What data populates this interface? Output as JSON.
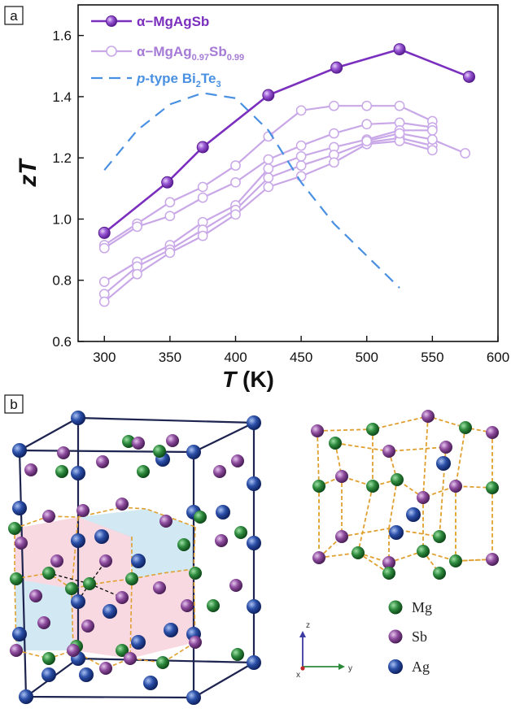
{
  "panels": {
    "a": "a",
    "b": "b"
  },
  "chart_data": {
    "type": "line",
    "xlabel_italic": "T",
    "xlabel_unit": " (K)",
    "ylabel_z": "z",
    "ylabel_T": "T",
    "xlim": [
      280,
      600
    ],
    "ylim": [
      0.6,
      1.7
    ],
    "xticks": [
      300,
      350,
      400,
      450,
      500,
      550,
      600
    ],
    "yticks": [
      0.6,
      0.8,
      1.0,
      1.2,
      1.4,
      1.6
    ],
    "legend": {
      "main": "α−MgAgSb",
      "doped_prefix": "α−MgAg",
      "doped_sub1": "0.97",
      "doped_mid": "Sb",
      "doped_sub2": "0.99",
      "bi_italic": "p",
      "bi_mid": "-type Bi",
      "bi_sub1": "2",
      "bi_te": "Te",
      "bi_sub2": "3"
    },
    "colors": {
      "main": "#7B2FBE",
      "doped": "#C9A8E8",
      "bi": "#4A90E2"
    },
    "main_series": {
      "name": "α−MgAgSb",
      "x": [
        300,
        348,
        375,
        425,
        477,
        525,
        578
      ],
      "y": [
        0.955,
        1.12,
        1.235,
        1.405,
        1.495,
        1.555,
        1.465
      ]
    },
    "doped_series": [
      {
        "x": [
          300,
          325,
          350,
          375,
          400,
          425,
          450,
          475,
          500,
          525,
          550
        ],
        "y": [
          0.915,
          0.985,
          1.055,
          1.105,
          1.175,
          1.27,
          1.355,
          1.37,
          1.37,
          1.37,
          1.32
        ]
      },
      {
        "x": [
          300,
          325,
          350,
          375,
          400,
          425,
          450,
          475,
          500,
          525,
          550
        ],
        "y": [
          0.905,
          0.975,
          1.01,
          1.07,
          1.12,
          1.195,
          1.24,
          1.28,
          1.31,
          1.315,
          1.3
        ]
      },
      {
        "x": [
          300,
          325,
          350,
          375,
          400,
          425,
          450,
          475,
          500,
          525,
          550
        ],
        "y": [
          0.795,
          0.86,
          0.915,
          0.99,
          1.045,
          1.165,
          1.205,
          1.235,
          1.26,
          1.29,
          1.29
        ]
      },
      {
        "x": [
          300,
          325,
          350,
          375,
          400,
          425,
          450,
          475,
          500,
          525,
          550
        ],
        "y": [
          0.755,
          0.845,
          0.9,
          0.965,
          1.03,
          1.135,
          1.175,
          1.21,
          1.25,
          1.265,
          1.24
        ]
      },
      {
        "x": [
          300,
          325,
          350,
          375,
          400,
          425,
          450,
          475,
          500,
          525,
          550
        ],
        "y": [
          0.73,
          0.82,
          0.89,
          0.945,
          1.015,
          1.105,
          1.14,
          1.185,
          1.245,
          1.255,
          1.225
        ]
      },
      {
        "x": [
          500,
          525,
          550,
          575
        ],
        "y": [
          1.255,
          1.28,
          1.26,
          1.215
        ]
      }
    ],
    "bi_series": {
      "name": "p-type Bi2Te3",
      "x": [
        300,
        325,
        350,
        375,
        400,
        425,
        450,
        475,
        500,
        525
      ],
      "y": [
        1.16,
        1.29,
        1.375,
        1.412,
        1.395,
        1.29,
        1.12,
        0.985,
        0.88,
        0.775
      ]
    }
  },
  "crystal_legend": {
    "items": [
      {
        "label": "Mg",
        "color": "#2E8B3E"
      },
      {
        "label": "Sb",
        "color": "#8E4C9E"
      },
      {
        "label": "Ag",
        "color": "#2B4FA8"
      }
    ]
  },
  "crystal_axes": {
    "z": "z",
    "y": "y",
    "x": "x"
  }
}
